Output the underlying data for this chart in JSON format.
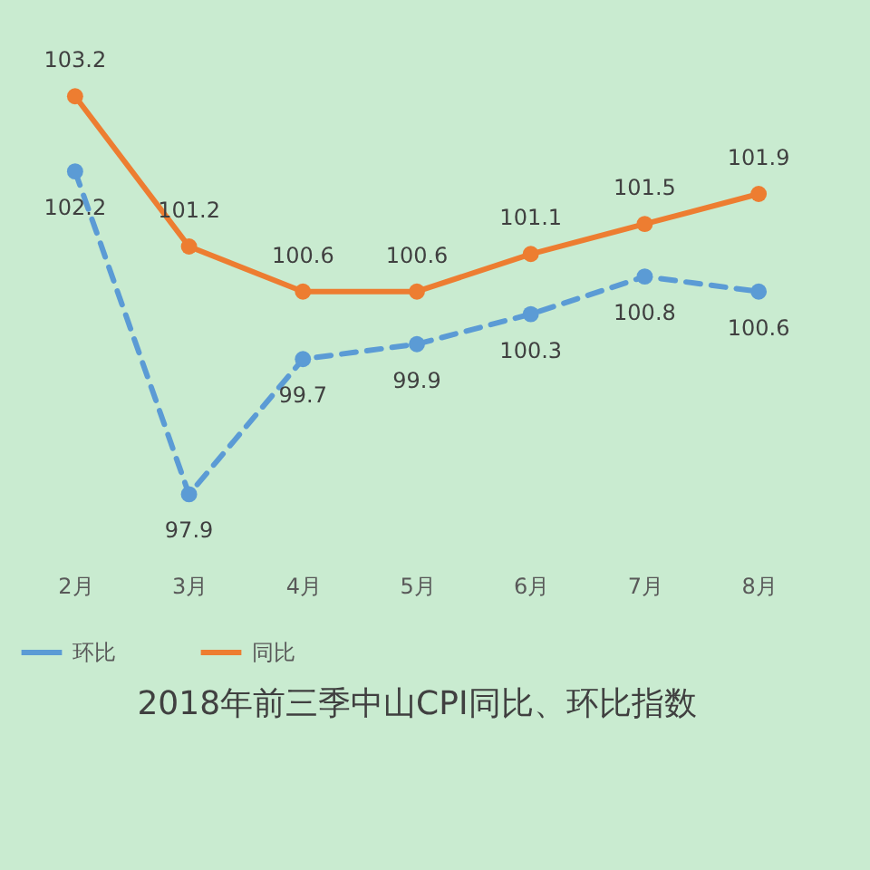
{
  "chart_data": {
    "type": "line",
    "title": "2018年前三季中山CPI同比、环比指数",
    "categories": [
      "2月",
      "3月",
      "4月",
      "5月",
      "6月",
      "7月",
      "8月"
    ],
    "series": [
      {
        "name": "环比",
        "color": "#5b9bd5",
        "line_style": "dashed",
        "values": [
          102.2,
          97.9,
          99.7,
          99.9,
          100.3,
          100.8,
          100.6
        ]
      },
      {
        "name": "同比",
        "color": "#ed7d31",
        "line_style": "solid",
        "values": [
          103.2,
          101.2,
          100.6,
          100.6,
          101.1,
          101.5,
          101.9
        ]
      }
    ],
    "marker": "circle",
    "data_labels": true,
    "legend": "bottom",
    "tick_labels": "x"
  }
}
